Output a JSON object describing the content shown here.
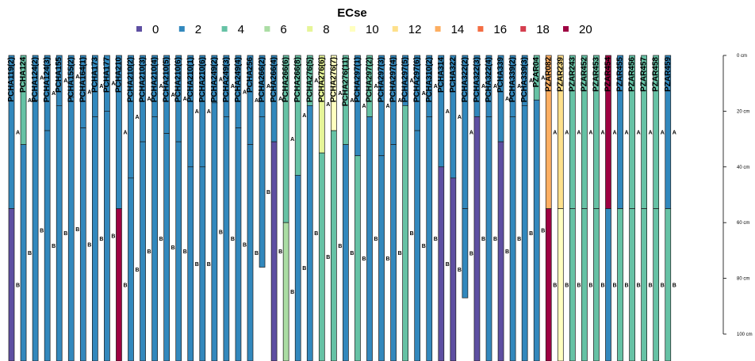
{
  "chart_data": {
    "type": "soil_profile_sketch",
    "title": "ECse",
    "legend": {
      "position": "top",
      "entries": [
        "0",
        "2",
        "4",
        "6",
        "8",
        "10",
        "12",
        "14",
        "16",
        "18",
        "20"
      ],
      "colors": [
        "#5E4FA2",
        "#3288BD",
        "#66C2A5",
        "#ABDDA4",
        "#E6F598",
        "#FFFFBF",
        "#FEE08B",
        "#FDAE61",
        "#F46D43",
        "#D53E4F",
        "#9E0142"
      ]
    },
    "depth_axis": {
      "unit": "cm",
      "range": [
        0,
        110
      ],
      "ticks": [
        0,
        20,
        40,
        60,
        80,
        100
      ],
      "tick_labels": [
        "0 cm",
        "20 cm",
        "40 cm",
        "60 cm",
        "80 cm",
        "100 cm"
      ]
    },
    "profiles": [
      {
        "id": "PCHA119(2)",
        "horizons": [
          {
            "name": "A",
            "top": 0,
            "bottom": 55,
            "ecse": 2
          },
          {
            "name": "B",
            "top": 55,
            "bottom": 110,
            "ecse": 0
          }
        ]
      },
      {
        "id": "PCHA124",
        "horizons": [
          {
            "name": "A",
            "top": 0,
            "bottom": 32,
            "ecse": 3
          },
          {
            "name": "B",
            "top": 32,
            "bottom": 110,
            "ecse": 2
          }
        ]
      },
      {
        "id": "PCHA124(2)",
        "horizons": [
          {
            "name": "A",
            "top": 0,
            "bottom": 16,
            "ecse": 2
          },
          {
            "name": "B",
            "top": 16,
            "bottom": 110,
            "ecse": 1
          }
        ]
      },
      {
        "id": "PCHA124(3)",
        "horizons": [
          {
            "name": "A",
            "top": 0,
            "bottom": 27,
            "ecse": 1
          },
          {
            "name": "B",
            "top": 27,
            "bottom": 110,
            "ecse": 2
          }
        ]
      },
      {
        "id": "PCHA155",
        "horizons": [
          {
            "name": "A",
            "top": 0,
            "bottom": 18,
            "ecse": 2
          },
          {
            "name": "B",
            "top": 18,
            "bottom": 110,
            "ecse": 1
          }
        ]
      },
      {
        "id": "PCHA155(2)",
        "horizons": [
          {
            "name": "A",
            "top": 0,
            "bottom": 15,
            "ecse": 1
          },
          {
            "name": "B",
            "top": 15,
            "bottom": 110,
            "ecse": 2
          }
        ]
      },
      {
        "id": "PCHA164(1)",
        "horizons": [
          {
            "name": "A",
            "top": 0,
            "bottom": 26,
            "ecse": 2
          },
          {
            "name": "B",
            "top": 26,
            "bottom": 110,
            "ecse": 1
          }
        ]
      },
      {
        "id": "PCHA173",
        "horizons": [
          {
            "name": "A",
            "top": 0,
            "bottom": 22,
            "ecse": 1
          },
          {
            "name": "B",
            "top": 22,
            "bottom": 110,
            "ecse": 2
          }
        ]
      },
      {
        "id": "PCHA177",
        "horizons": [
          {
            "name": "A",
            "top": 0,
            "bottom": 20,
            "ecse": 2
          },
          {
            "name": "B",
            "top": 20,
            "bottom": 110,
            "ecse": 1
          }
        ]
      },
      {
        "id": "PCHA210",
        "horizons": [
          {
            "name": "A",
            "top": 0,
            "bottom": 55,
            "ecse": 2
          },
          {
            "name": "B",
            "top": 55,
            "bottom": 110,
            "ecse": 20
          }
        ]
      },
      {
        "id": "PCHA210(2)",
        "horizons": [
          {
            "name": "A",
            "top": 0,
            "bottom": 44,
            "ecse": 2
          },
          {
            "name": "B",
            "top": 44,
            "bottom": 110,
            "ecse": 1
          }
        ]
      },
      {
        "id": "PCHA210(3)",
        "horizons": [
          {
            "name": "A",
            "top": 0,
            "bottom": 31,
            "ecse": 1
          },
          {
            "name": "B",
            "top": 31,
            "bottom": 110,
            "ecse": 2
          }
        ]
      },
      {
        "id": "PCHA210(4)",
        "horizons": [
          {
            "name": "A",
            "top": 0,
            "bottom": 22,
            "ecse": 2
          },
          {
            "name": "B",
            "top": 22,
            "bottom": 110,
            "ecse": 1
          }
        ]
      },
      {
        "id": "PCHA210(5)",
        "horizons": [
          {
            "name": "A",
            "top": 0,
            "bottom": 28,
            "ecse": 1
          },
          {
            "name": "B",
            "top": 28,
            "bottom": 110,
            "ecse": 2
          }
        ]
      },
      {
        "id": "PCHA210(6)",
        "horizons": [
          {
            "name": "A",
            "top": 0,
            "bottom": 31,
            "ecse": 2
          },
          {
            "name": "B",
            "top": 31,
            "bottom": 110,
            "ecse": 1
          }
        ]
      },
      {
        "id": "PCHA210(1)",
        "horizons": [
          {
            "name": "A",
            "top": 0,
            "bottom": 40,
            "ecse": 1
          },
          {
            "name": "B",
            "top": 40,
            "bottom": 110,
            "ecse": 2
          }
        ]
      },
      {
        "id": "PCHA210(6)",
        "horizons": [
          {
            "name": "A",
            "top": 0,
            "bottom": 40,
            "ecse": 2
          },
          {
            "name": "B",
            "top": 40,
            "bottom": 110,
            "ecse": 1
          }
        ]
      },
      {
        "id": "PCHA249(2)",
        "horizons": [
          {
            "name": "A",
            "top": 0,
            "bottom": 17,
            "ecse": 2
          },
          {
            "name": "B",
            "top": 17,
            "bottom": 110,
            "ecse": 1
          }
        ]
      },
      {
        "id": "PCHA249(3)",
        "horizons": [
          {
            "name": "A",
            "top": 0,
            "bottom": 22,
            "ecse": 1
          },
          {
            "name": "B",
            "top": 22,
            "bottom": 110,
            "ecse": 2
          }
        ]
      },
      {
        "id": "PCHA249(4)",
        "horizons": [
          {
            "name": "A",
            "top": 0,
            "bottom": 26,
            "ecse": 2
          },
          {
            "name": "B",
            "top": 26,
            "bottom": 110,
            "ecse": 1
          }
        ]
      },
      {
        "id": "PCHA256",
        "horizons": [
          {
            "name": "A",
            "top": 0,
            "bottom": 32,
            "ecse": 1
          },
          {
            "name": "B",
            "top": 32,
            "bottom": 110,
            "ecse": 2
          }
        ]
      },
      {
        "id": "PCHA266(2)",
        "horizons": [
          {
            "name": "A",
            "top": 0,
            "bottom": 22,
            "ecse": 2
          },
          {
            "name": "B",
            "top": 22,
            "bottom": 76,
            "ecse": 2
          }
        ]
      },
      {
        "id": "PCHA266(4)",
        "horizons": [
          {
            "name": "A",
            "top": 0,
            "bottom": 31,
            "ecse": 1
          },
          {
            "name": "B",
            "top": 31,
            "bottom": 110,
            "ecse": 0
          }
        ]
      },
      {
        "id": "PCHA266(6)",
        "horizons": [
          {
            "name": "A",
            "top": 0,
            "bottom": 60,
            "ecse": 3
          },
          {
            "name": "B",
            "top": 60,
            "bottom": 110,
            "ecse": 5
          }
        ]
      },
      {
        "id": "PCHA266(8)",
        "horizons": [
          {
            "name": "A",
            "top": 0,
            "bottom": 43,
            "ecse": 4
          },
          {
            "name": "B",
            "top": 43,
            "bottom": 110,
            "ecse": 2
          }
        ]
      },
      {
        "id": "PCHA276(5)",
        "horizons": [
          {
            "name": "A",
            "top": 0,
            "bottom": 18,
            "ecse": 3
          },
          {
            "name": "B",
            "top": 18,
            "bottom": 110,
            "ecse": 2
          }
        ]
      },
      {
        "id": "PCHA276(6)",
        "horizons": [
          {
            "name": "A",
            "top": 0,
            "bottom": 35,
            "ecse": 8
          },
          {
            "name": "B",
            "top": 35,
            "bottom": 110,
            "ecse": 4
          }
        ]
      },
      {
        "id": "PCHA276(7)",
        "horizons": [
          {
            "name": "A",
            "top": 0,
            "bottom": 27,
            "ecse": 9
          },
          {
            "name": "B",
            "top": 27,
            "bottom": 110,
            "ecse": 3
          }
        ]
      },
      {
        "id": "PCHA276(11)",
        "horizons": [
          {
            "name": "A",
            "top": 0,
            "bottom": 32,
            "ecse": 4
          },
          {
            "name": "B",
            "top": 32,
            "bottom": 110,
            "ecse": 2
          }
        ]
      },
      {
        "id": "PCHA297(1)",
        "horizons": [
          {
            "name": "A",
            "top": 0,
            "bottom": 36,
            "ecse": 2
          },
          {
            "name": "B",
            "top": 36,
            "bottom": 110,
            "ecse": 3
          }
        ]
      },
      {
        "id": "PCHA297(2)",
        "horizons": [
          {
            "name": "A",
            "top": 0,
            "bottom": 22,
            "ecse": 3
          },
          {
            "name": "B",
            "top": 22,
            "bottom": 110,
            "ecse": 2
          }
        ]
      },
      {
        "id": "PCHA297(3)",
        "horizons": [
          {
            "name": "A",
            "top": 0,
            "bottom": 36,
            "ecse": 2
          },
          {
            "name": "B",
            "top": 36,
            "bottom": 110,
            "ecse": 1
          }
        ]
      },
      {
        "id": "PCHA297(4)",
        "horizons": [
          {
            "name": "A",
            "top": 0,
            "bottom": 32,
            "ecse": 1
          },
          {
            "name": "B",
            "top": 32,
            "bottom": 110,
            "ecse": 2
          }
        ]
      },
      {
        "id": "PCHA297(5)",
        "horizons": [
          {
            "name": "A",
            "top": 0,
            "bottom": 18,
            "ecse": 2
          },
          {
            "name": "B",
            "top": 18,
            "bottom": 110,
            "ecse": 3
          }
        ]
      },
      {
        "id": "PCHA297(6)",
        "horizons": [
          {
            "name": "A",
            "top": 0,
            "bottom": 27,
            "ecse": 1
          },
          {
            "name": "B",
            "top": 27,
            "bottom": 110,
            "ecse": 2
          }
        ]
      },
      {
        "id": "PCHA310(2)",
        "horizons": [
          {
            "name": "A",
            "top": 0,
            "bottom": 22,
            "ecse": 2
          },
          {
            "name": "B",
            "top": 22,
            "bottom": 110,
            "ecse": 1
          }
        ]
      },
      {
        "id": "PCHA314",
        "horizons": [
          {
            "name": "A",
            "top": 0,
            "bottom": 40,
            "ecse": 1
          },
          {
            "name": "B",
            "top": 40,
            "bottom": 110,
            "ecse": 0
          }
        ]
      },
      {
        "id": "PCHA322",
        "horizons": [
          {
            "name": "A",
            "top": 0,
            "bottom": 44,
            "ecse": 1
          },
          {
            "name": "B",
            "top": 44,
            "bottom": 110,
            "ecse": 0
          }
        ]
      },
      {
        "id": "PCHA322(2)",
        "horizons": [
          {
            "name": "A",
            "top": 0,
            "bottom": 55,
            "ecse": 2
          },
          {
            "name": "B",
            "top": 55,
            "bottom": 87,
            "ecse": 2
          }
        ]
      },
      {
        "id": "PCHA322(3)",
        "horizons": [
          {
            "name": "A",
            "top": 0,
            "bottom": 22,
            "ecse": 1
          },
          {
            "name": "B",
            "top": 22,
            "bottom": 110,
            "ecse": 0
          }
        ]
      },
      {
        "id": "PCHA322(4)",
        "horizons": [
          {
            "name": "A",
            "top": 0,
            "bottom": 22,
            "ecse": 2
          },
          {
            "name": "B",
            "top": 22,
            "bottom": 110,
            "ecse": 1
          }
        ]
      },
      {
        "id": "PCHA339",
        "horizons": [
          {
            "name": "A",
            "top": 0,
            "bottom": 31,
            "ecse": 1
          },
          {
            "name": "B",
            "top": 31,
            "bottom": 110,
            "ecse": 0
          }
        ]
      },
      {
        "id": "PCHA339(2)",
        "horizons": [
          {
            "name": "A",
            "top": 0,
            "bottom": 22,
            "ecse": 2
          },
          {
            "name": "B",
            "top": 22,
            "bottom": 110,
            "ecse": 1
          }
        ]
      },
      {
        "id": "PCHA339(3)",
        "horizons": [
          {
            "name": "A",
            "top": 0,
            "bottom": 18,
            "ecse": 1
          },
          {
            "name": "B",
            "top": 18,
            "bottom": 110,
            "ecse": 2
          }
        ]
      },
      {
        "id": "PZAR04",
        "horizons": [
          {
            "name": "A",
            "top": 0,
            "bottom": 16,
            "ecse": 3
          },
          {
            "name": "B",
            "top": 16,
            "bottom": 110,
            "ecse": 2
          }
        ]
      },
      {
        "id": "PZAR082",
        "horizons": [
          {
            "name": "A",
            "top": 0,
            "bottom": 55,
            "ecse": 14
          },
          {
            "name": "B",
            "top": 55,
            "bottom": 110,
            "ecse": 19
          }
        ]
      },
      {
        "id": "PZAR239",
        "horizons": [
          {
            "name": "A",
            "top": 0,
            "bottom": 55,
            "ecse": 12
          },
          {
            "name": "B",
            "top": 55,
            "bottom": 110,
            "ecse": 9
          }
        ]
      },
      {
        "id": "PZAR243",
        "horizons": [
          {
            "name": "A",
            "top": 0,
            "bottom": 55,
            "ecse": 3
          },
          {
            "name": "B",
            "top": 55,
            "bottom": 110,
            "ecse": 4
          }
        ]
      },
      {
        "id": "PZAR452",
        "horizons": [
          {
            "name": "A",
            "top": 0,
            "bottom": 55,
            "ecse": 3
          },
          {
            "name": "B",
            "top": 55,
            "bottom": 110,
            "ecse": 4
          }
        ]
      },
      {
        "id": "PZAR453",
        "horizons": [
          {
            "name": "A",
            "top": 0,
            "bottom": 55,
            "ecse": 4
          },
          {
            "name": "B",
            "top": 55,
            "bottom": 110,
            "ecse": 3
          }
        ]
      },
      {
        "id": "PZAR454",
        "horizons": [
          {
            "name": "A",
            "top": 0,
            "bottom": 55,
            "ecse": 20
          },
          {
            "name": "B",
            "top": 55,
            "bottom": 110,
            "ecse": 2
          }
        ]
      },
      {
        "id": "PZAR455",
        "horizons": [
          {
            "name": "A",
            "top": 0,
            "bottom": 55,
            "ecse": 2
          },
          {
            "name": "B",
            "top": 55,
            "bottom": 110,
            "ecse": 3
          }
        ]
      },
      {
        "id": "PZAR456",
        "horizons": [
          {
            "name": "A",
            "top": 0,
            "bottom": 55,
            "ecse": 3
          },
          {
            "name": "B",
            "top": 55,
            "bottom": 110,
            "ecse": 4
          }
        ]
      },
      {
        "id": "PZAR457",
        "horizons": [
          {
            "name": "A",
            "top": 0,
            "bottom": 55,
            "ecse": 4
          },
          {
            "name": "B",
            "top": 55,
            "bottom": 110,
            "ecse": 3
          }
        ]
      },
      {
        "id": "PZAR458",
        "horizons": [
          {
            "name": "A",
            "top": 0,
            "bottom": 55,
            "ecse": 3
          },
          {
            "name": "B",
            "top": 55,
            "bottom": 110,
            "ecse": 4
          }
        ]
      },
      {
        "id": "PZAR459",
        "horizons": [
          {
            "name": "A",
            "top": 0,
            "bottom": 55,
            "ecse": 2
          },
          {
            "name": "B",
            "top": 55,
            "bottom": 110,
            "ecse": 3
          }
        ]
      }
    ]
  }
}
